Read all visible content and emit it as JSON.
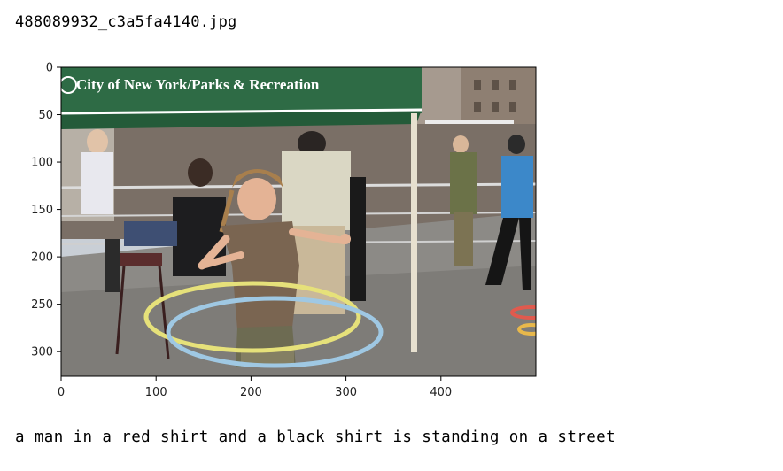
{
  "output": {
    "filename": "488089932_c3a5fa4140.jpg",
    "caption": "a man in a red shirt and a black shirt is standing on a street"
  },
  "image": {
    "banner_text": "City of New York/Parks & Recreation"
  },
  "axes": {
    "x_ticks": [
      "0",
      "100",
      "200",
      "300",
      "400"
    ],
    "y_ticks": [
      "0",
      "50",
      "100",
      "150",
      "200",
      "250",
      "300"
    ],
    "xlim": [
      0,
      500
    ],
    "ylim": [
      0,
      326
    ]
  },
  "colors": {
    "tent": "#2e6b45",
    "sky": "#c9cfd6",
    "pavement": "#8c8a86",
    "hoop_yellow": "#e6e17a",
    "hoop_blue": "#9fc8e3"
  }
}
